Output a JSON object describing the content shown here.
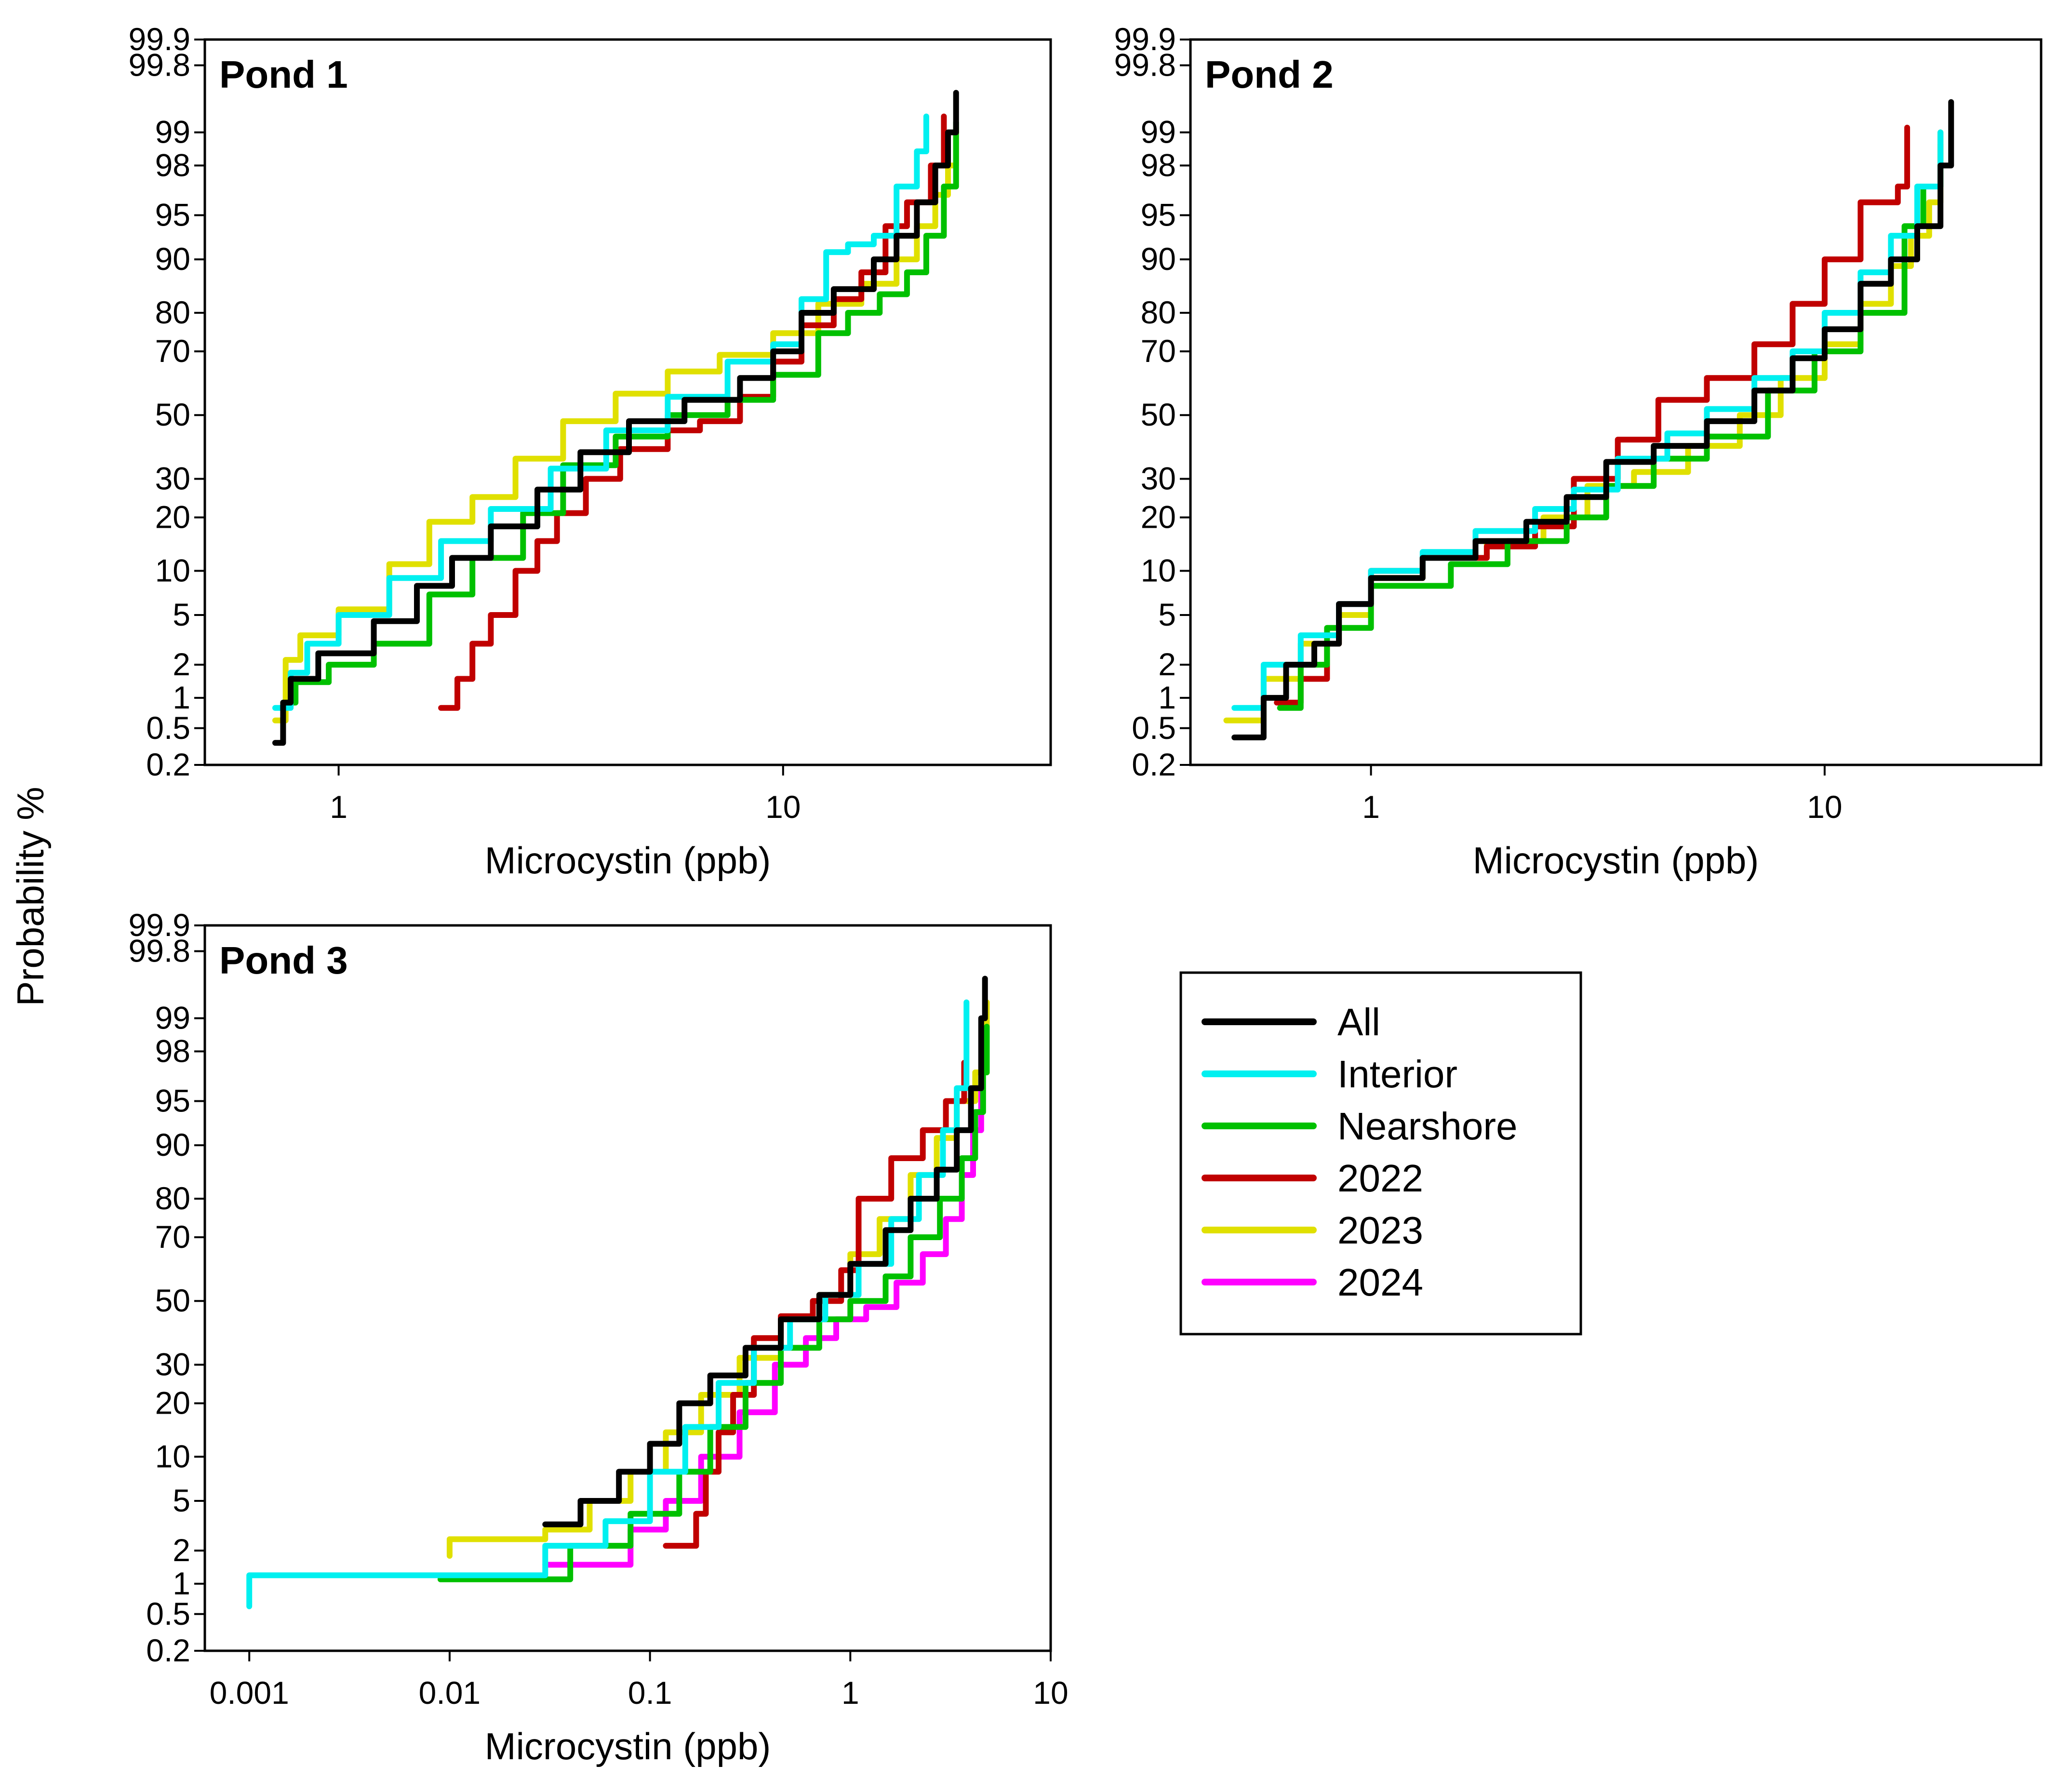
{
  "figure": {
    "ylabel": "Probability %",
    "xlabel": "Microcystin (ppb)"
  },
  "colors": {
    "All": "#000000",
    "Interior": "#00f0f0",
    "Nearshore": "#00c000",
    "2022": "#c00000",
    "2023": "#e0e000",
    "2024": "#ff00ff"
  },
  "legend": {
    "entries": [
      "All",
      "Interior",
      "Nearshore",
      "2022",
      "2023",
      "2024"
    ]
  },
  "chart_data": [
    {
      "type": "line",
      "title": "Pond 1",
      "xlabel": "Microcystin (ppb)",
      "ylabel": "Probability %",
      "xscale": "log",
      "yscale": "probability",
      "xlim": [
        0.5,
        40
      ],
      "ylim": [
        0.2,
        99.9
      ],
      "xticks": [
        1,
        10
      ],
      "xtick_labels": [
        "1",
        "10"
      ],
      "yticks": [
        0.2,
        0.5,
        1,
        2,
        5,
        10,
        20,
        30,
        50,
        70,
        80,
        90,
        95,
        98,
        99,
        99.8,
        99.9
      ],
      "ytick_labels": [
        "0.2",
        "0.5",
        "1",
        "2",
        "5",
        "10",
        "20",
        "30",
        "50",
        "70",
        "80",
        "90",
        "95",
        "98",
        "99",
        "99.8",
        "99.9"
      ],
      "series": [
        {
          "name": "All",
          "x": [
            0.72,
            0.75,
            0.78,
            0.9,
            1.2,
            1.5,
            1.8,
            2.2,
            2.8,
            3.5,
            4.5,
            6,
            8,
            9.5,
            11,
            13,
            16,
            18,
            20,
            22,
            23.5,
            24.5
          ],
          "y": [
            0.35,
            0.9,
            1.5,
            2.5,
            4.5,
            8,
            12,
            18,
            27,
            38,
            48,
            55,
            62,
            70,
            80,
            85,
            90,
            93,
            96,
            98,
            99,
            99.6
          ]
        },
        {
          "name": "Interior",
          "x": [
            0.72,
            0.78,
            0.85,
            1.0,
            1.3,
            1.7,
            2.2,
            3,
            4,
            5.5,
            7.5,
            9.5,
            11,
            12.5,
            14,
            16,
            18,
            20,
            21
          ],
          "y": [
            0.8,
            1.7,
            3,
            5,
            9,
            15,
            22,
            33,
            45,
            56,
            67,
            72,
            83,
            91,
            92,
            93,
            97,
            98.5,
            99.3
          ]
        },
        {
          "name": "Nearshore",
          "x": [
            0.75,
            0.8,
            0.95,
            1.2,
            1.6,
            2.0,
            2.6,
            3.2,
            4.2,
            5.5,
            7.5,
            9.5,
            12,
            14,
            16.5,
            19,
            21,
            23,
            24.5
          ],
          "y": [
            0.9,
            1.4,
            2,
            3,
            7,
            12,
            21,
            34,
            43,
            50,
            55,
            63,
            75,
            80,
            84,
            88,
            93,
            97,
            99.2
          ]
        },
        {
          "name": "2022",
          "x": [
            1.7,
            1.85,
            2.0,
            2.2,
            2.5,
            2.8,
            3.1,
            3.6,
            4.3,
            5.5,
            6.5,
            8,
            9.5,
            11,
            13,
            15,
            17,
            19,
            21.5,
            23
          ],
          "y": [
            0.8,
            1.5,
            3,
            5,
            10,
            15,
            21,
            30,
            39,
            45,
            48,
            56,
            67,
            77,
            83,
            88,
            94,
            96,
            98,
            99.3
          ]
        },
        {
          "name": "2023",
          "x": [
            0.72,
            0.76,
            0.82,
            1.0,
            1.3,
            1.6,
            2.0,
            2.5,
            3.2,
            4.2,
            5.5,
            7.2,
            9.5,
            12,
            15,
            18,
            20,
            22,
            23.5,
            24.5
          ],
          "y": [
            0.6,
            2.2,
            3.5,
            5.5,
            11,
            19,
            25,
            36,
            48,
            57,
            64,
            69,
            75,
            82,
            86,
            90,
            94,
            96.5,
            98,
            99.1
          ]
        }
      ]
    },
    {
      "type": "line",
      "title": "Pond 2",
      "xlabel": "Microcystin (ppb)",
      "ylabel": "Probability %",
      "xscale": "log",
      "yscale": "probability",
      "xlim": [
        0.4,
        30
      ],
      "ylim": [
        0.2,
        99.9
      ],
      "xticks": [
        1,
        10
      ],
      "xtick_labels": [
        "1",
        "10"
      ],
      "yticks": [
        0.2,
        0.5,
        1,
        2,
        5,
        10,
        20,
        30,
        50,
        70,
        80,
        90,
        95,
        98,
        99,
        99.8,
        99.9
      ],
      "ytick_labels": [
        "0.2",
        "0.5",
        "1",
        "2",
        "5",
        "10",
        "20",
        "30",
        "50",
        "70",
        "80",
        "90",
        "95",
        "98",
        "99",
        "99.8",
        "99.9"
      ],
      "series": [
        {
          "name": "All",
          "x": [
            0.5,
            0.58,
            0.65,
            0.75,
            0.85,
            1.0,
            1.3,
            1.7,
            2.2,
            2.7,
            3.3,
            4.2,
            5.5,
            7,
            8.5,
            10,
            12,
            14,
            16,
            18,
            19
          ],
          "y": [
            0.4,
            1,
            2,
            3,
            6,
            9,
            12,
            15,
            19,
            25,
            35,
            40,
            48,
            58,
            68,
            76,
            86,
            90,
            94,
            98,
            99.5
          ]
        },
        {
          "name": "Interior",
          "x": [
            0.5,
            0.58,
            0.7,
            0.85,
            1.0,
            1.3,
            1.7,
            2.3,
            2.8,
            3.5,
            4.5,
            5.5,
            7,
            8.5,
            10,
            12,
            14,
            16,
            18
          ],
          "y": [
            0.8,
            2,
            3.5,
            6,
            10,
            13,
            17,
            22,
            27,
            36,
            44,
            52,
            62,
            70,
            80,
            88,
            93,
            97,
            99
          ]
        },
        {
          "name": "Nearshore",
          "x": [
            0.63,
            0.7,
            0.8,
            1.0,
            1.5,
            2.0,
            2.7,
            3.3,
            4.2,
            5.5,
            7.5,
            9.5,
            12,
            15,
            16.5,
            18
          ],
          "y": [
            0.8,
            2,
            4,
            8,
            11,
            15,
            20,
            28,
            36,
            43,
            58,
            70,
            80,
            94,
            97,
            99
          ]
        },
        {
          "name": "2022",
          "x": [
            0.62,
            0.7,
            0.8,
            0.85,
            1.0,
            1.3,
            1.8,
            2.3,
            2.8,
            3.5,
            4.3,
            5.5,
            7,
            8.5,
            10,
            12,
            14.5,
            15.2
          ],
          "y": [
            0.9,
            1.5,
            3,
            6,
            10,
            12,
            14,
            18,
            30,
            42,
            55,
            62,
            72,
            82,
            90,
            96,
            97,
            99.1
          ]
        },
        {
          "name": "2023",
          "x": [
            0.48,
            0.58,
            0.7,
            0.85,
            1.0,
            1.3,
            1.8,
            2.4,
            3.0,
            3.8,
            5,
            6.5,
            8,
            10,
            12,
            14,
            15.5,
            17,
            18
          ],
          "y": [
            0.6,
            1.5,
            3,
            5,
            9,
            12,
            15,
            20,
            28,
            32,
            40,
            50,
            62,
            72,
            82,
            89,
            93,
            96,
            98.7
          ]
        }
      ]
    },
    {
      "type": "line",
      "title": "Pond 3",
      "xlabel": "Microcystin (ppb)",
      "ylabel": "Probability %",
      "xscale": "log",
      "yscale": "probability",
      "xlim": [
        0.0006,
        10
      ],
      "ylim": [
        0.2,
        99.9
      ],
      "xticks": [
        0.001,
        0.01,
        0.1,
        1,
        10
      ],
      "xtick_labels": [
        "0.001",
        "0.01",
        "0.1",
        "1",
        "10"
      ],
      "yticks": [
        0.2,
        0.5,
        1,
        2,
        5,
        10,
        20,
        30,
        50,
        70,
        80,
        90,
        95,
        98,
        99,
        99.8,
        99.9
      ],
      "ytick_labels": [
        "0.2",
        "0.5",
        "1",
        "2",
        "5",
        "10",
        "20",
        "30",
        "50",
        "70",
        "80",
        "90",
        "95",
        "98",
        "99",
        "99.8",
        "99.9"
      ],
      "series": [
        {
          "name": "All",
          "x": [
            0.03,
            0.045,
            0.07,
            0.1,
            0.14,
            0.2,
            0.3,
            0.45,
            0.7,
            1.0,
            1.5,
            2.0,
            2.7,
            3.4,
            4.0,
            4.5,
            4.7
          ],
          "y": [
            3.3,
            5,
            8,
            12,
            20,
            27,
            35,
            44,
            52,
            62,
            72,
            80,
            86,
            92,
            96,
            99,
            99.6
          ]
        },
        {
          "name": "Interior",
          "x": [
            0.001,
            0.001,
            0.03,
            0.06,
            0.1,
            0.15,
            0.22,
            0.33,
            0.5,
            0.75,
            1.1,
            1.6,
            2.2,
            2.9,
            3.4,
            3.8
          ],
          "y": [
            0.6,
            1.2,
            2.2,
            3.5,
            8,
            15,
            25,
            35,
            44,
            52,
            62,
            75,
            85,
            92,
            96,
            99.3
          ]
        },
        {
          "name": "Nearshore",
          "x": [
            0.009,
            0.04,
            0.08,
            0.14,
            0.2,
            0.3,
            0.45,
            0.7,
            1.0,
            1.5,
            2.0,
            2.8,
            3.6,
            4.2,
            4.6,
            4.8
          ],
          "y": [
            1.1,
            2.2,
            4,
            8,
            15,
            25,
            35,
            44,
            50,
            58,
            70,
            80,
            88,
            94,
            97,
            98.8
          ]
        },
        {
          "name": "2022",
          "x": [
            0.12,
            0.17,
            0.19,
            0.22,
            0.26,
            0.33,
            0.45,
            0.65,
            0.9,
            1.1,
            1.6,
            2.3,
            3.0,
            3.7
          ],
          "y": [
            2.2,
            4,
            8,
            14,
            22,
            38,
            45,
            50,
            60,
            80,
            88,
            92,
            95,
            97.5
          ]
        },
        {
          "name": "2023",
          "x": [
            0.01,
            0.01,
            0.03,
            0.05,
            0.08,
            0.12,
            0.18,
            0.28,
            0.45,
            0.7,
            1.0,
            1.4,
            2.0,
            2.7,
            3.4,
            4.2,
            4.8
          ],
          "y": [
            1.8,
            2.5,
            3,
            5,
            8,
            14,
            22,
            32,
            44,
            52,
            65,
            75,
            85,
            91,
            95,
            97,
            99.3
          ]
        },
        {
          "name": "2024",
          "x": [
            0.03,
            0.08,
            0.12,
            0.18,
            0.28,
            0.42,
            0.6,
            0.85,
            1.2,
            1.7,
            2.3,
            3.0,
            3.6,
            4.1,
            4.5
          ],
          "y": [
            1.5,
            3,
            5,
            10,
            18,
            30,
            38,
            44,
            48,
            56,
            65,
            75,
            85,
            92,
            96
          ]
        }
      ]
    }
  ]
}
